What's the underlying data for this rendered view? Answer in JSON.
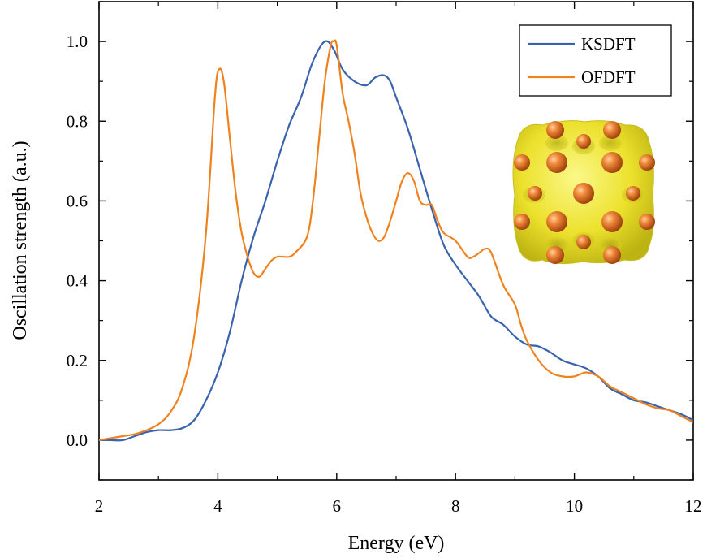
{
  "chart_data": {
    "type": "line",
    "xlabel": "Energy (eV)",
    "ylabel": "Oscillation strength (a.u.)",
    "xlim": [
      2,
      12
    ],
    "ylim": [
      -0.1,
      1.1
    ],
    "xticks": [
      2,
      4,
      6,
      8,
      10,
      12
    ],
    "xtick_labels": [
      "2",
      "4",
      "6",
      "8",
      "10",
      "12"
    ],
    "yticks": [
      0.0,
      0.2,
      0.4,
      0.6,
      0.8,
      1.0
    ],
    "ytick_labels": [
      "0.0",
      "0.2",
      "0.4",
      "0.6",
      "0.8",
      "1.0"
    ],
    "grid": false,
    "legend_position": "top-right",
    "series": [
      {
        "name": "KSDFT",
        "color": "#3a63ad",
        "points": [
          [
            2.0,
            0.0
          ],
          [
            2.2,
            0.0
          ],
          [
            2.4,
            0.0
          ],
          [
            2.6,
            0.01
          ],
          [
            2.8,
            0.02
          ],
          [
            3.0,
            0.025
          ],
          [
            3.2,
            0.025
          ],
          [
            3.4,
            0.03
          ],
          [
            3.6,
            0.05
          ],
          [
            3.8,
            0.1
          ],
          [
            4.0,
            0.17
          ],
          [
            4.2,
            0.27
          ],
          [
            4.4,
            0.4
          ],
          [
            4.6,
            0.51
          ],
          [
            4.8,
            0.6
          ],
          [
            5.0,
            0.7
          ],
          [
            5.2,
            0.79
          ],
          [
            5.4,
            0.86
          ],
          [
            5.6,
            0.95
          ],
          [
            5.8,
            1.0
          ],
          [
            5.95,
            0.98
          ],
          [
            6.1,
            0.93
          ],
          [
            6.3,
            0.9
          ],
          [
            6.5,
            0.89
          ],
          [
            6.65,
            0.91
          ],
          [
            6.8,
            0.915
          ],
          [
            6.9,
            0.9
          ],
          [
            7.0,
            0.86
          ],
          [
            7.2,
            0.78
          ],
          [
            7.4,
            0.68
          ],
          [
            7.6,
            0.58
          ],
          [
            7.8,
            0.49
          ],
          [
            8.0,
            0.44
          ],
          [
            8.2,
            0.4
          ],
          [
            8.4,
            0.36
          ],
          [
            8.6,
            0.31
          ],
          [
            8.8,
            0.29
          ],
          [
            9.0,
            0.26
          ],
          [
            9.2,
            0.24
          ],
          [
            9.4,
            0.235
          ],
          [
            9.6,
            0.22
          ],
          [
            9.8,
            0.2
          ],
          [
            10.0,
            0.19
          ],
          [
            10.2,
            0.18
          ],
          [
            10.4,
            0.16
          ],
          [
            10.6,
            0.13
          ],
          [
            10.8,
            0.115
          ],
          [
            11.0,
            0.1
          ],
          [
            11.2,
            0.095
          ],
          [
            11.4,
            0.085
          ],
          [
            11.6,
            0.075
          ],
          [
            11.8,
            0.065
          ],
          [
            12.0,
            0.05
          ]
        ]
      },
      {
        "name": "OFDFT",
        "color": "#f0821e",
        "points": [
          [
            2.0,
            0.0
          ],
          [
            2.2,
            0.005
          ],
          [
            2.4,
            0.01
          ],
          [
            2.6,
            0.015
          ],
          [
            2.8,
            0.025
          ],
          [
            3.0,
            0.04
          ],
          [
            3.2,
            0.07
          ],
          [
            3.4,
            0.13
          ],
          [
            3.6,
            0.26
          ],
          [
            3.8,
            0.52
          ],
          [
            3.95,
            0.86
          ],
          [
            4.02,
            0.93
          ],
          [
            4.1,
            0.9
          ],
          [
            4.2,
            0.76
          ],
          [
            4.3,
            0.62
          ],
          [
            4.4,
            0.52
          ],
          [
            4.5,
            0.46
          ],
          [
            4.6,
            0.42
          ],
          [
            4.7,
            0.41
          ],
          [
            4.8,
            0.43
          ],
          [
            4.9,
            0.45
          ],
          [
            5.0,
            0.46
          ],
          [
            5.1,
            0.46
          ],
          [
            5.2,
            0.46
          ],
          [
            5.3,
            0.47
          ],
          [
            5.5,
            0.51
          ],
          [
            5.6,
            0.6
          ],
          [
            5.7,
            0.75
          ],
          [
            5.8,
            0.9
          ],
          [
            5.9,
            0.99
          ],
          [
            5.95,
            1.0
          ],
          [
            6.0,
            0.99
          ],
          [
            6.1,
            0.87
          ],
          [
            6.2,
            0.8
          ],
          [
            6.3,
            0.72
          ],
          [
            6.4,
            0.62
          ],
          [
            6.5,
            0.56
          ],
          [
            6.6,
            0.52
          ],
          [
            6.7,
            0.5
          ],
          [
            6.8,
            0.51
          ],
          [
            6.9,
            0.55
          ],
          [
            7.0,
            0.6
          ],
          [
            7.1,
            0.65
          ],
          [
            7.2,
            0.67
          ],
          [
            7.3,
            0.65
          ],
          [
            7.4,
            0.6
          ],
          [
            7.5,
            0.59
          ],
          [
            7.6,
            0.59
          ],
          [
            7.7,
            0.55
          ],
          [
            7.8,
            0.52
          ],
          [
            8.0,
            0.5
          ],
          [
            8.2,
            0.46
          ],
          [
            8.3,
            0.46
          ],
          [
            8.4,
            0.47
          ],
          [
            8.5,
            0.48
          ],
          [
            8.6,
            0.47
          ],
          [
            8.8,
            0.39
          ],
          [
            9.0,
            0.34
          ],
          [
            9.1,
            0.29
          ],
          [
            9.2,
            0.25
          ],
          [
            9.4,
            0.2
          ],
          [
            9.6,
            0.17
          ],
          [
            9.8,
            0.16
          ],
          [
            10.0,
            0.16
          ],
          [
            10.2,
            0.17
          ],
          [
            10.4,
            0.16
          ],
          [
            10.6,
            0.135
          ],
          [
            10.8,
            0.12
          ],
          [
            11.0,
            0.105
          ],
          [
            11.2,
            0.09
          ],
          [
            11.4,
            0.08
          ],
          [
            11.6,
            0.075
          ],
          [
            11.8,
            0.06
          ],
          [
            12.0,
            0.045
          ]
        ]
      }
    ]
  },
  "inset": {
    "description_icon": "cluster-isosurface-icon",
    "surface_color": "#f2ec3a",
    "atom_color": "#d8601a"
  }
}
